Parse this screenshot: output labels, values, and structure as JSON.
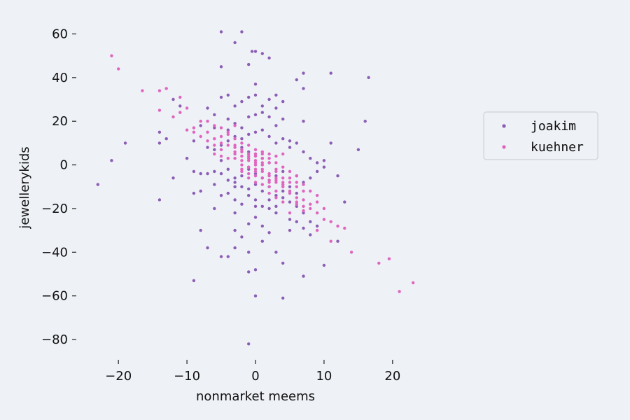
{
  "chart_data": {
    "type": "scatter",
    "title": "",
    "xlabel": "nonmarket meems",
    "ylabel": "jewellerykids",
    "xlim": [
      -24,
      24
    ],
    "ylim": [
      -88,
      64
    ],
    "xticks": [
      -20,
      -10,
      0,
      10,
      20
    ],
    "yticks": [
      -80,
      -60,
      -40,
      -20,
      0,
      20,
      40,
      60
    ],
    "grid": false,
    "legend_position": "center-right",
    "series": [
      {
        "name": "joakim",
        "color": "#8c5db5",
        "points": [
          [
            -5,
            61
          ],
          [
            -2,
            61
          ],
          [
            -3,
            56
          ],
          [
            -0.5,
            52
          ],
          [
            0,
            52
          ],
          [
            1,
            51
          ],
          [
            2,
            49
          ],
          [
            -1,
            46
          ],
          [
            -5,
            45
          ],
          [
            7,
            42
          ],
          [
            11,
            42
          ],
          [
            6,
            39
          ],
          [
            16.5,
            40
          ],
          [
            7,
            35
          ],
          [
            -4,
            32
          ],
          [
            -5,
            31
          ],
          [
            -1,
            31
          ],
          [
            0,
            32
          ],
          [
            -2,
            29
          ],
          [
            -3,
            27
          ],
          [
            1,
            27
          ],
          [
            3,
            32
          ],
          [
            4,
            29
          ],
          [
            -12,
            30
          ],
          [
            -11,
            27
          ],
          [
            -7,
            26
          ],
          [
            -6,
            23
          ],
          [
            -4,
            21
          ],
          [
            -3,
            19
          ],
          [
            -1,
            22
          ],
          [
            0,
            23
          ],
          [
            1,
            24
          ],
          [
            2,
            22
          ],
          [
            3,
            18
          ],
          [
            4,
            21
          ],
          [
            7,
            20
          ],
          [
            16,
            20
          ],
          [
            -14,
            15
          ],
          [
            -14,
            10
          ],
          [
            -19,
            10
          ],
          [
            -21,
            2
          ],
          [
            -23,
            -9
          ],
          [
            -12,
            -6
          ],
          [
            -9,
            -3
          ],
          [
            -8,
            -4
          ],
          [
            -7,
            -4
          ],
          [
            -6,
            -3
          ],
          [
            -5,
            -4
          ],
          [
            -4,
            -2
          ],
          [
            -3,
            -8
          ],
          [
            -2,
            -10
          ],
          [
            -1,
            -11
          ],
          [
            0,
            -9
          ],
          [
            1,
            -12
          ],
          [
            2,
            -10
          ],
          [
            3,
            -14
          ],
          [
            4,
            -12
          ],
          [
            5,
            -10
          ],
          [
            6,
            -13
          ],
          [
            7,
            -8
          ],
          [
            8,
            -6
          ],
          [
            9,
            -3
          ],
          [
            10,
            -1
          ],
          [
            11,
            10
          ],
          [
            15,
            7
          ],
          [
            13,
            -17
          ],
          [
            12,
            -35
          ],
          [
            10,
            -46
          ],
          [
            7,
            -51
          ],
          [
            4,
            -45
          ],
          [
            3,
            -40
          ],
          [
            2,
            -31
          ],
          [
            1,
            -28
          ],
          [
            0,
            -24
          ],
          [
            -1,
            -27
          ],
          [
            -2,
            -33
          ],
          [
            -3,
            -38
          ],
          [
            -4,
            -42
          ],
          [
            -5,
            -42
          ],
          [
            -7,
            -38
          ],
          [
            -9,
            -53
          ],
          [
            -14,
            -16
          ],
          [
            -9,
            -13
          ],
          [
            -8,
            -12
          ],
          [
            -6,
            -9
          ],
          [
            -4,
            -13
          ],
          [
            -3,
            -16
          ],
          [
            -2,
            -18
          ],
          [
            0,
            -19
          ],
          [
            1,
            -19
          ],
          [
            2,
            -16
          ],
          [
            3,
            -19
          ],
          [
            4,
            -15
          ],
          [
            5,
            -17
          ],
          [
            6,
            -19
          ],
          [
            7,
            -22
          ],
          [
            8,
            -26
          ],
          [
            9,
            -28
          ],
          [
            -6,
            7
          ],
          [
            -5,
            9
          ],
          [
            -4,
            11
          ],
          [
            -3,
            13
          ],
          [
            -2,
            12
          ],
          [
            -1,
            14
          ],
          [
            0,
            15
          ],
          [
            1,
            16
          ],
          [
            2,
            13
          ],
          [
            3,
            10
          ],
          [
            4,
            12
          ],
          [
            5,
            8
          ],
          [
            6,
            10
          ],
          [
            7,
            6
          ],
          [
            8,
            3
          ],
          [
            9,
            1
          ],
          [
            -10,
            3
          ],
          [
            -13,
            12
          ],
          [
            -8,
            18
          ],
          [
            -6,
            17
          ],
          [
            -2,
            8
          ],
          [
            -1,
            6
          ],
          [
            0,
            5
          ],
          [
            1,
            3
          ],
          [
            2,
            1
          ],
          [
            -1,
            -2
          ],
          [
            0,
            -4
          ],
          [
            1,
            -6
          ],
          [
            2,
            -7
          ],
          [
            3,
            -5
          ],
          [
            -2,
            -5
          ],
          [
            -3,
            -6
          ],
          [
            -4,
            -7
          ],
          [
            -1,
            -14
          ],
          [
            0,
            -16
          ],
          [
            2,
            -20
          ],
          [
            3,
            -22
          ],
          [
            5,
            -25
          ],
          [
            6,
            -26
          ],
          [
            -1,
            -49
          ],
          [
            0,
            -60
          ],
          [
            4,
            -61
          ],
          [
            -1,
            -82
          ],
          [
            1,
            -35
          ],
          [
            -3,
            -22
          ],
          [
            -5,
            -14
          ],
          [
            -6,
            -20
          ],
          [
            -3,
            -30
          ],
          [
            0,
            -48
          ],
          [
            5,
            -30
          ],
          [
            7,
            -29
          ],
          [
            10,
            2
          ],
          [
            12,
            -5
          ],
          [
            6,
            -5
          ],
          [
            4,
            -3
          ],
          [
            -5,
            2
          ],
          [
            -7,
            8
          ],
          [
            -9,
            11
          ],
          [
            -2,
            17
          ],
          [
            -4,
            16
          ],
          [
            3,
            26
          ],
          [
            5,
            11
          ],
          [
            2,
            30
          ],
          [
            0,
            37
          ],
          [
            -1,
            -40
          ],
          [
            -3,
            -10
          ],
          [
            -8,
            -30
          ],
          [
            8,
            -32
          ]
        ]
      },
      {
        "name": "kuehner",
        "color": "#e065bf",
        "points": [
          [
            -21,
            50
          ],
          [
            -20,
            44
          ],
          [
            -16.5,
            34
          ],
          [
            -14,
            34
          ],
          [
            -13,
            35
          ],
          [
            -11,
            31
          ],
          [
            -14,
            25
          ],
          [
            -11,
            24
          ],
          [
            -10,
            26
          ],
          [
            -12,
            22
          ],
          [
            -9,
            17
          ],
          [
            -7,
            20
          ],
          [
            -9,
            15
          ],
          [
            -8,
            13
          ],
          [
            -7,
            15
          ],
          [
            -6,
            12
          ],
          [
            -5,
            13
          ],
          [
            -6,
            9
          ],
          [
            -5,
            7
          ],
          [
            -4,
            9
          ],
          [
            -3,
            8
          ],
          [
            -2,
            6
          ],
          [
            -1,
            5
          ],
          [
            0,
            4
          ],
          [
            -1,
            2
          ],
          [
            0,
            1
          ],
          [
            1,
            3
          ],
          [
            2,
            1
          ],
          [
            -2,
            0
          ],
          [
            -1,
            -1
          ],
          [
            0,
            -2
          ],
          [
            1,
            -2
          ],
          [
            2,
            -4
          ],
          [
            3,
            -3
          ],
          [
            -2,
            -3
          ],
          [
            -1,
            -4
          ],
          [
            0,
            -5
          ],
          [
            1,
            -6
          ],
          [
            2,
            -7
          ],
          [
            3,
            -8
          ],
          [
            4,
            -6
          ],
          [
            5,
            -8
          ],
          [
            6,
            -10
          ],
          [
            7,
            -9
          ],
          [
            8,
            -12
          ],
          [
            9,
            -14
          ],
          [
            5,
            -13
          ],
          [
            6,
            -15
          ],
          [
            7,
            -16
          ],
          [
            8,
            -20
          ],
          [
            9,
            -22
          ],
          [
            10,
            -20
          ],
          [
            11,
            -26
          ],
          [
            12,
            -28
          ],
          [
            13,
            -29
          ],
          [
            11,
            -35
          ],
          [
            14,
            -40
          ],
          [
            18,
            -45
          ],
          [
            19.5,
            -43
          ],
          [
            21,
            -58
          ],
          [
            23,
            -54
          ],
          [
            -5,
            17
          ],
          [
            -4,
            15
          ],
          [
            -3,
            12
          ],
          [
            -2,
            10
          ],
          [
            -1,
            9
          ],
          [
            0,
            7
          ],
          [
            1,
            5
          ],
          [
            2,
            3
          ],
          [
            3,
            1
          ],
          [
            4,
            -1
          ],
          [
            5,
            -3
          ],
          [
            6,
            -5
          ],
          [
            4,
            -10
          ],
          [
            5,
            -12
          ],
          [
            6,
            -18
          ],
          [
            7,
            -19
          ],
          [
            3,
            -12
          ],
          [
            2,
            -10
          ],
          [
            -3,
            3
          ],
          [
            -2,
            2
          ],
          [
            -1,
            -1
          ],
          [
            0,
            0
          ],
          [
            1,
            -3
          ],
          [
            2,
            -5
          ],
          [
            3,
            -6
          ],
          [
            4,
            -8
          ],
          [
            -8,
            20
          ],
          [
            -6,
            18
          ],
          [
            -4,
            14
          ],
          [
            -3,
            18
          ],
          [
            -2,
            7
          ],
          [
            -1,
            4
          ],
          [
            0,
            2
          ],
          [
            1,
            1
          ],
          [
            -6,
            5
          ],
          [
            -5,
            4
          ],
          [
            -4,
            3
          ],
          [
            -3,
            5
          ],
          [
            3,
            -7
          ],
          [
            4,
            -9
          ],
          [
            5,
            -6
          ],
          [
            6,
            -8
          ],
          [
            7,
            -12
          ],
          [
            8,
            -18
          ],
          [
            10,
            -25
          ],
          [
            9,
            -30
          ],
          [
            5,
            -22
          ],
          [
            4,
            -17
          ],
          [
            3,
            -15
          ],
          [
            2,
            -13
          ],
          [
            -1,
            -6
          ],
          [
            0,
            -8
          ],
          [
            1,
            -9
          ],
          [
            2,
            -8
          ],
          [
            -10,
            16
          ],
          [
            -7,
            11
          ],
          [
            -5,
            10
          ],
          [
            -3,
            6
          ],
          [
            -2,
            4
          ],
          [
            1,
            6
          ],
          [
            2,
            5
          ],
          [
            3,
            4
          ],
          [
            -1,
            3
          ],
          [
            0,
            5
          ],
          [
            1,
            0
          ],
          [
            0,
            -3
          ],
          [
            -2,
            -2
          ],
          [
            6,
            -17
          ],
          [
            7,
            -21
          ],
          [
            9,
            -17
          ],
          [
            4,
            5
          ],
          [
            3,
            -2
          ],
          [
            -3,
            9
          ]
        ]
      }
    ]
  }
}
